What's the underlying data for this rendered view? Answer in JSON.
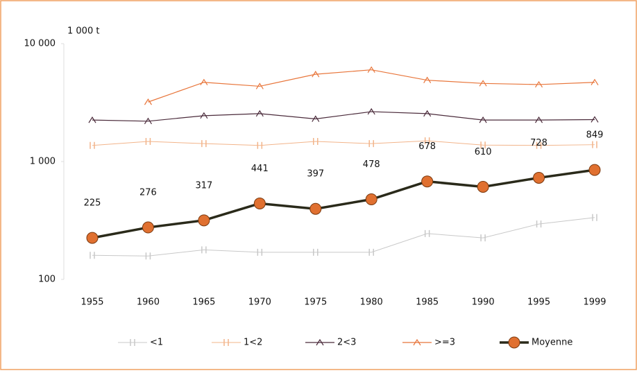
{
  "chart_data": {
    "type": "line",
    "y_unit_label": "1 000 t",
    "categories": [
      "1955",
      "1960",
      "1965",
      "1970",
      "1975",
      "1980",
      "1985",
      "1990",
      "1995",
      "1999"
    ],
    "ylim": [
      100,
      10000
    ],
    "log_scale": true,
    "yticks": [
      {
        "value": 100,
        "label": "100"
      },
      {
        "value": 1000,
        "label": "1 000"
      },
      {
        "value": 10000,
        "label": "10 000"
      }
    ],
    "legend": "bottom",
    "series": [
      {
        "name": "<1",
        "color": "#c8c8c8",
        "marker": "bar",
        "width": 1,
        "values": [
          160,
          158,
          178,
          170,
          170,
          170,
          245,
          225,
          295,
          335
        ]
      },
      {
        "name": "1<2",
        "color": "#f2b48a",
        "marker": "bar",
        "width": 1,
        "values": [
          1370,
          1480,
          1420,
          1370,
          1480,
          1420,
          1500,
          1380,
          1370,
          1390
        ]
      },
      {
        "name": "2<3",
        "color": "#4a2a3a",
        "marker": "caret",
        "width": 1.2,
        "values": [
          2250,
          2200,
          2450,
          2550,
          2300,
          2650,
          2550,
          2250,
          2250,
          2270
        ]
      },
      {
        "name": ">=3",
        "color": "#e8753a",
        "marker": "caret",
        "width": 1.2,
        "values": [
          null,
          3200,
          4700,
          4350,
          5500,
          6000,
          4900,
          4600,
          4500,
          4700
        ]
      },
      {
        "name": "Moyenne",
        "color": "#2a2a1a",
        "marker": "circle",
        "marker_color": "#e07030",
        "width": 3.5,
        "data_labels": true,
        "values": [
          225,
          276,
          317,
          441,
          397,
          478,
          678,
          610,
          728,
          849
        ]
      }
    ]
  }
}
